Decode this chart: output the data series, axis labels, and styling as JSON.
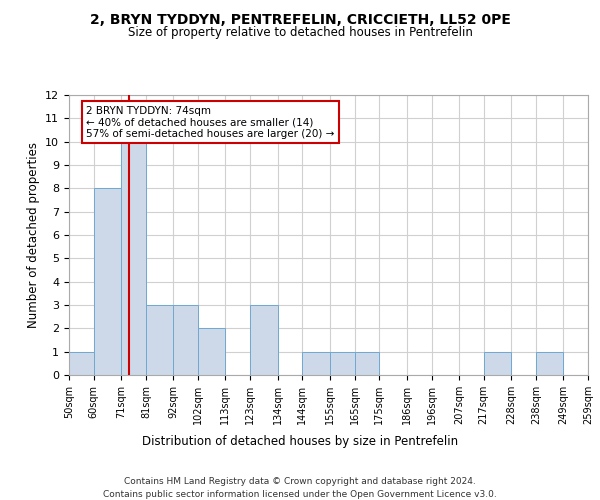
{
  "title": "2, BRYN TYDDYN, PENTREFELIN, CRICCIETH, LL52 0PE",
  "subtitle": "Size of property relative to detached houses in Pentrefelin",
  "xlabel": "Distribution of detached houses by size in Pentrefelin",
  "ylabel": "Number of detached properties",
  "bin_edges": [
    50,
    60,
    71,
    81,
    92,
    102,
    113,
    123,
    134,
    144,
    155,
    165,
    175,
    186,
    196,
    207,
    217,
    228,
    238,
    249,
    259
  ],
  "bar_heights": [
    1,
    8,
    10,
    3,
    3,
    2,
    0,
    3,
    0,
    1,
    1,
    1,
    0,
    0,
    0,
    0,
    1,
    0,
    1,
    0
  ],
  "bar_color": "#cdd9e8",
  "bar_edge_color": "#6fa8d0",
  "tick_labels": [
    "50sqm",
    "60sqm",
    "71sqm",
    "81sqm",
    "92sqm",
    "102sqm",
    "113sqm",
    "123sqm",
    "134sqm",
    "144sqm",
    "155sqm",
    "165sqm",
    "175sqm",
    "186sqm",
    "196sqm",
    "207sqm",
    "217sqm",
    "228sqm",
    "238sqm",
    "249sqm",
    "259sqm"
  ],
  "vline_x": 74,
  "vline_color": "#cc0000",
  "annotation_text": "2 BRYN TYDDYN: 74sqm\n← 40% of detached houses are smaller (14)\n57% of semi-detached houses are larger (20) →",
  "annotation_box_color": "#cc0000",
  "ylim": [
    0,
    12
  ],
  "yticks": [
    0,
    1,
    2,
    3,
    4,
    5,
    6,
    7,
    8,
    9,
    10,
    11,
    12
  ],
  "grid_color": "#d0d0d0",
  "background_color": "#ffffff",
  "footer_line1": "Contains HM Land Registry data © Crown copyright and database right 2024.",
  "footer_line2": "Contains public sector information licensed under the Open Government Licence v3.0."
}
